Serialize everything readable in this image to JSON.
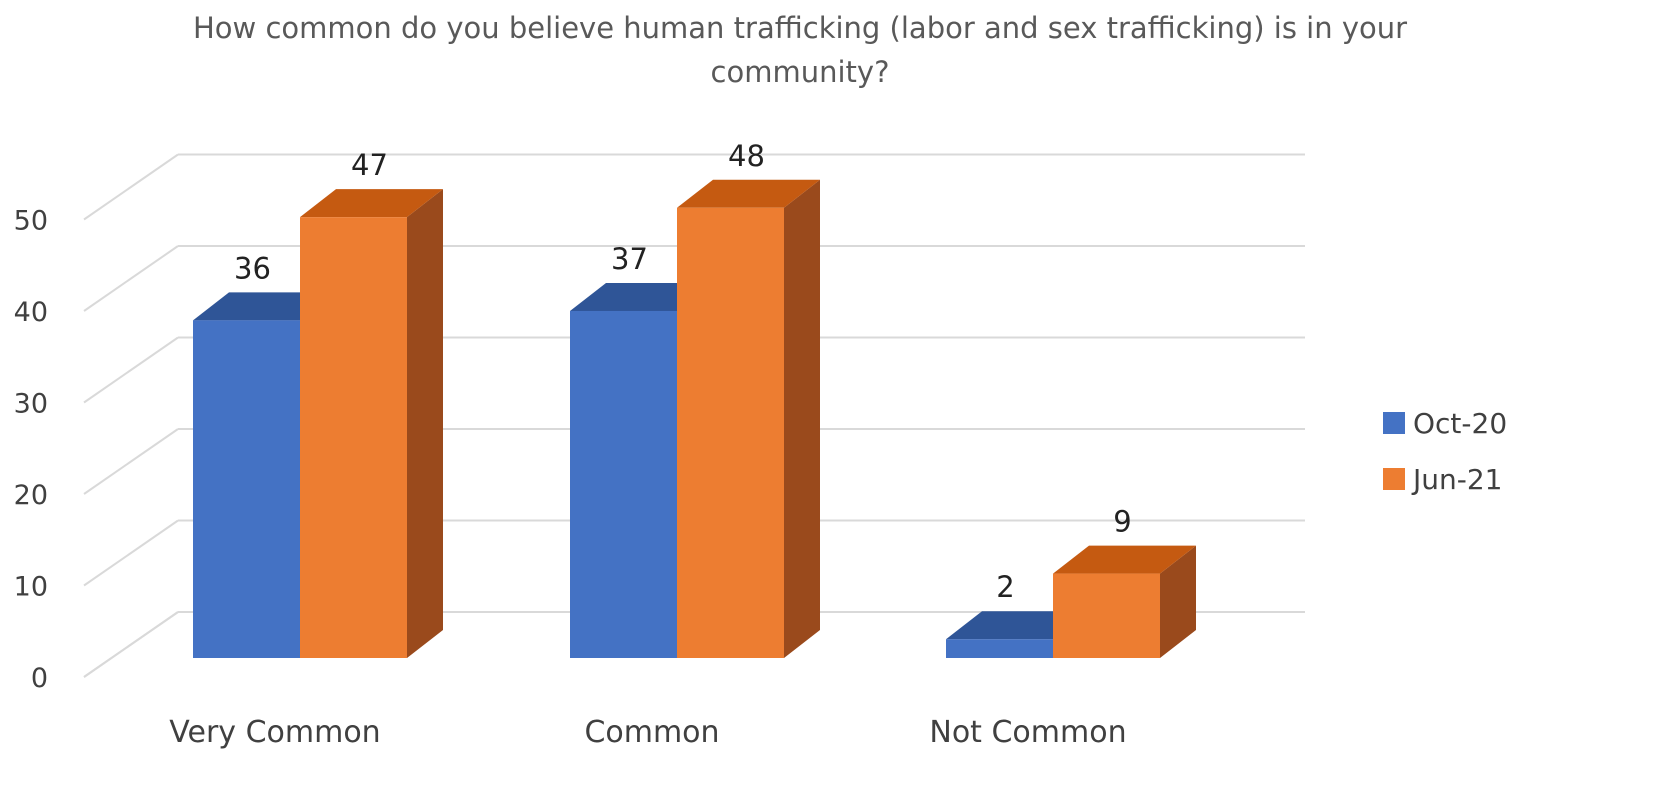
{
  "chart_data": {
    "type": "bar",
    "title": "How common do you believe human trafficking (labor and sex trafficking) is in your community?",
    "categories": [
      "Very Common",
      "Common",
      "Not Common"
    ],
    "series": [
      {
        "name": "Oct-20",
        "values": [
          36,
          37,
          2
        ],
        "color": "#4472C4",
        "top_color": "#2F5597"
      },
      {
        "name": "Jun-21",
        "values": [
          47,
          48,
          9
        ],
        "color": "#ED7D31",
        "top_color": "#C55A11",
        "side_color": "#9A4A1C"
      }
    ],
    "data_labels": [
      [
        "36",
        "37",
        "2"
      ],
      [
        "47",
        "48",
        "9"
      ]
    ],
    "yticks": [
      0,
      10,
      20,
      30,
      40,
      50
    ],
    "ylim": [
      0,
      50
    ],
    "grid": true,
    "legend_position": "right",
    "style": "3d-clustered-column"
  }
}
